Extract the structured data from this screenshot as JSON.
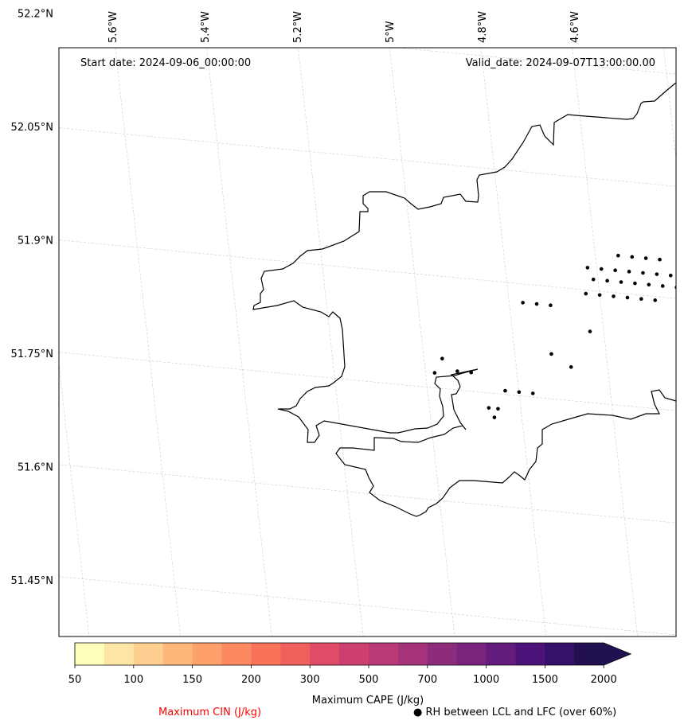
{
  "map": {
    "start_date_label": "Start date: 2024-09-06_00:00:00",
    "valid_date_label": "Valid_date: 2024-09-07T13:00:00.00",
    "lon_ticks": [
      {
        "label": "5.6°W",
        "lon": -5.6
      },
      {
        "label": "5.4°W",
        "lon": -5.4
      },
      {
        "label": "5.2°W",
        "lon": -5.2
      },
      {
        "label": "5°W",
        "lon": -5.0
      },
      {
        "label": "4.8°W",
        "lon": -4.8
      },
      {
        "label": "4.6°W",
        "lon": -4.6
      }
    ],
    "lat_ticks": [
      {
        "label": "52.2°N",
        "lat": 52.2
      },
      {
        "label": "52.05°N",
        "lat": 52.05
      },
      {
        "label": "51.9°N",
        "lat": 51.9
      },
      {
        "label": "51.75°N",
        "lat": 51.75
      },
      {
        "label": "51.6°N",
        "lat": 51.6
      },
      {
        "label": "51.45°N",
        "lat": 51.45
      }
    ],
    "gridlines": true,
    "coastline_color": "#000000",
    "rh_markers": [
      [
        -4.55,
        51.95
      ],
      [
        -4.52,
        51.95
      ],
      [
        -4.49,
        51.95
      ],
      [
        -4.46,
        51.95
      ],
      [
        -4.62,
        51.93
      ],
      [
        -4.59,
        51.93
      ],
      [
        -4.56,
        51.93
      ],
      [
        -4.53,
        51.93
      ],
      [
        -4.5,
        51.93
      ],
      [
        -4.47,
        51.93
      ],
      [
        -4.44,
        51.93
      ],
      [
        -4.61,
        51.915
      ],
      [
        -4.58,
        51.915
      ],
      [
        -4.55,
        51.915
      ],
      [
        -4.52,
        51.915
      ],
      [
        -4.49,
        51.915
      ],
      [
        -4.46,
        51.915
      ],
      [
        -4.43,
        51.915
      ],
      [
        -4.63,
        51.895
      ],
      [
        -4.6,
        51.895
      ],
      [
        -4.57,
        51.895
      ],
      [
        -4.54,
        51.895
      ],
      [
        -4.51,
        51.895
      ],
      [
        -4.48,
        51.895
      ],
      [
        -4.71,
        51.875
      ],
      [
        -4.74,
        51.875
      ],
      [
        -4.77,
        51.875
      ],
      [
        -4.63,
        51.845
      ],
      [
        -4.72,
        51.81
      ],
      [
        -4.68,
        51.795
      ],
      [
        -4.93,
        51.775
      ],
      [
        -4.9,
        51.775
      ],
      [
        -4.96,
        51.79
      ],
      [
        -4.98,
        51.77
      ],
      [
        -4.77,
        51.755
      ],
      [
        -4.8,
        51.755
      ],
      [
        -4.83,
        51.755
      ],
      [
        -4.87,
        51.73
      ],
      [
        -4.85,
        51.73
      ],
      [
        -4.86,
        51.718
      ]
    ]
  },
  "colorbar": {
    "colors": [
      "#fefebb",
      "#fde6a5",
      "#fecf91",
      "#feb77b",
      "#fea06b",
      "#fd8960",
      "#f87359",
      "#ef5f5b",
      "#e04b65",
      "#cd3f6f",
      "#b93a76",
      "#a4337a",
      "#8e2c7c",
      "#79247d",
      "#631c7c",
      "#4c137a",
      "#37106a",
      "#221150"
    ],
    "extend_color": "#221150",
    "tick_labels": [
      "50",
      "100",
      "150",
      "200",
      "300",
      "500",
      "700",
      "1000",
      "1500",
      "2000"
    ],
    "label": "Maximum CAPE (J/kg)"
  },
  "legend": {
    "cin_label": "Maximum CIN (J/kg)",
    "cin_color": "#ff0000",
    "rh_symbol": "●",
    "rh_label": "RH between LCL and LFC (over 60%)"
  }
}
